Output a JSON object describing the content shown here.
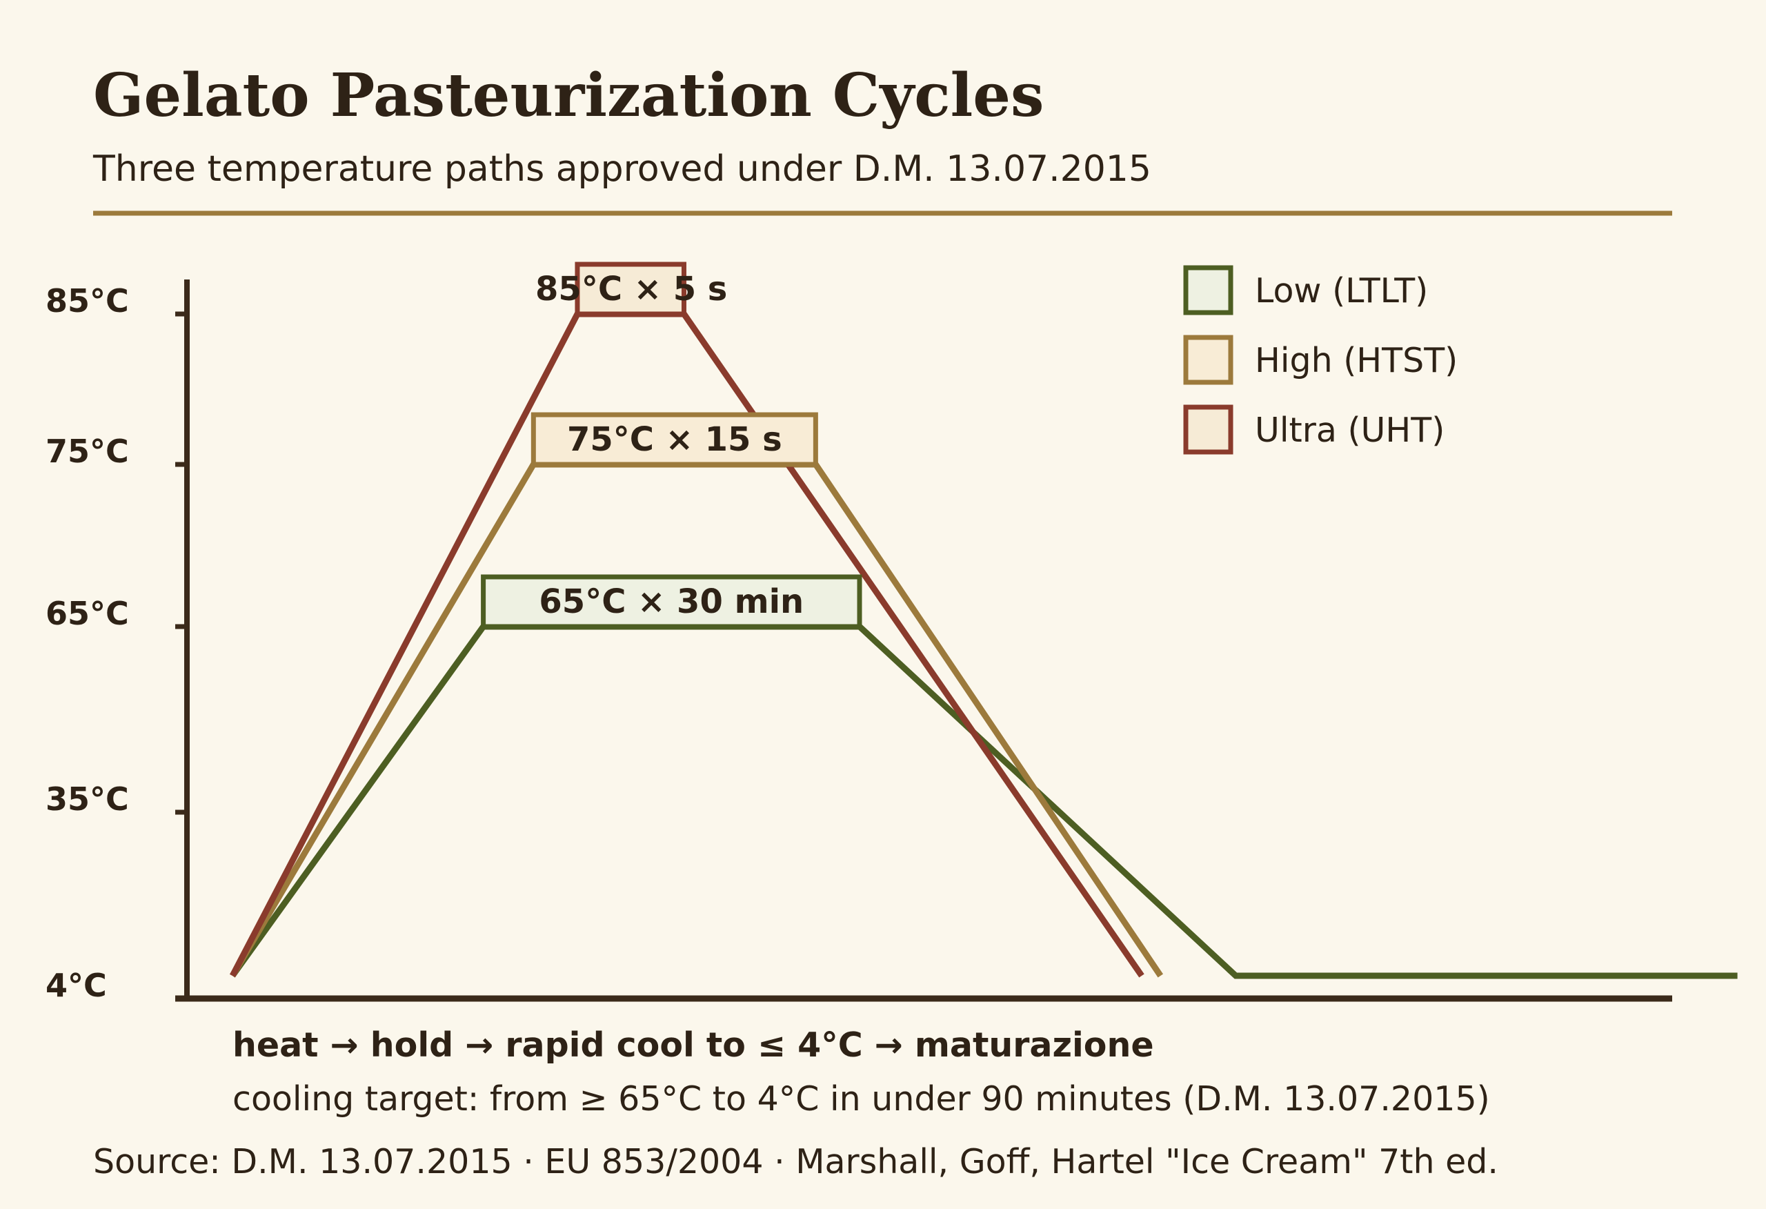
{
  "chart_data": {
    "type": "line",
    "title": "Gelato Pasteurization Cycles",
    "subtitle": "Three temperature paths approved under D.M. 13.07.2015",
    "y_ticks": [
      "4°C",
      "35°C",
      "65°C",
      "75°C",
      "85°C"
    ],
    "y_tick_values": [
      4,
      35,
      65,
      75,
      85
    ],
    "ylim": [
      4,
      85
    ],
    "grid": false,
    "legend_position": "top-right",
    "series": [
      {
        "name": "Low (LTLT)",
        "color": "#4d5e22",
        "fill": "#eef1e2",
        "hold_label": "65°C × 30 min",
        "points": [
          [
            0.0,
            4
          ],
          [
            0.4,
            65
          ],
          [
            1.0,
            65
          ],
          [
            1.6,
            4
          ],
          [
            2.4,
            4
          ]
        ]
      },
      {
        "name": "High (HTST)",
        "color": "#9c7a3c",
        "fill": "#f8ecd6",
        "hold_label": "75°C × 15 s",
        "points": [
          [
            0.0,
            4
          ],
          [
            0.48,
            75
          ],
          [
            0.93,
            75
          ],
          [
            1.48,
            4
          ]
        ]
      },
      {
        "name": "Ultra (UHT)",
        "color": "#8a3b2c",
        "fill": "#f6ebd6",
        "hold_label": "85°C × 5 s",
        "points": [
          [
            0.0,
            4
          ],
          [
            0.55,
            85
          ],
          [
            0.72,
            85
          ],
          [
            1.45,
            4
          ]
        ]
      }
    ]
  },
  "notes": {
    "process": "heat → hold → rapid cool to ≤ 4°C → maturazione",
    "cooling": "cooling target: from ≥ 65°C to 4°C in under 90 minutes (D.M. 13.07.2015)"
  },
  "source": "Source: D.M. 13.07.2015 · EU 853/2004 · Marshall, Goff, Hartel \"Ice Cream\" 7th ed.",
  "colors": {
    "background": "#fbf7ec",
    "text": "#2e2216",
    "rule": "#9c7a3c",
    "axis": "#3b2a1a"
  }
}
